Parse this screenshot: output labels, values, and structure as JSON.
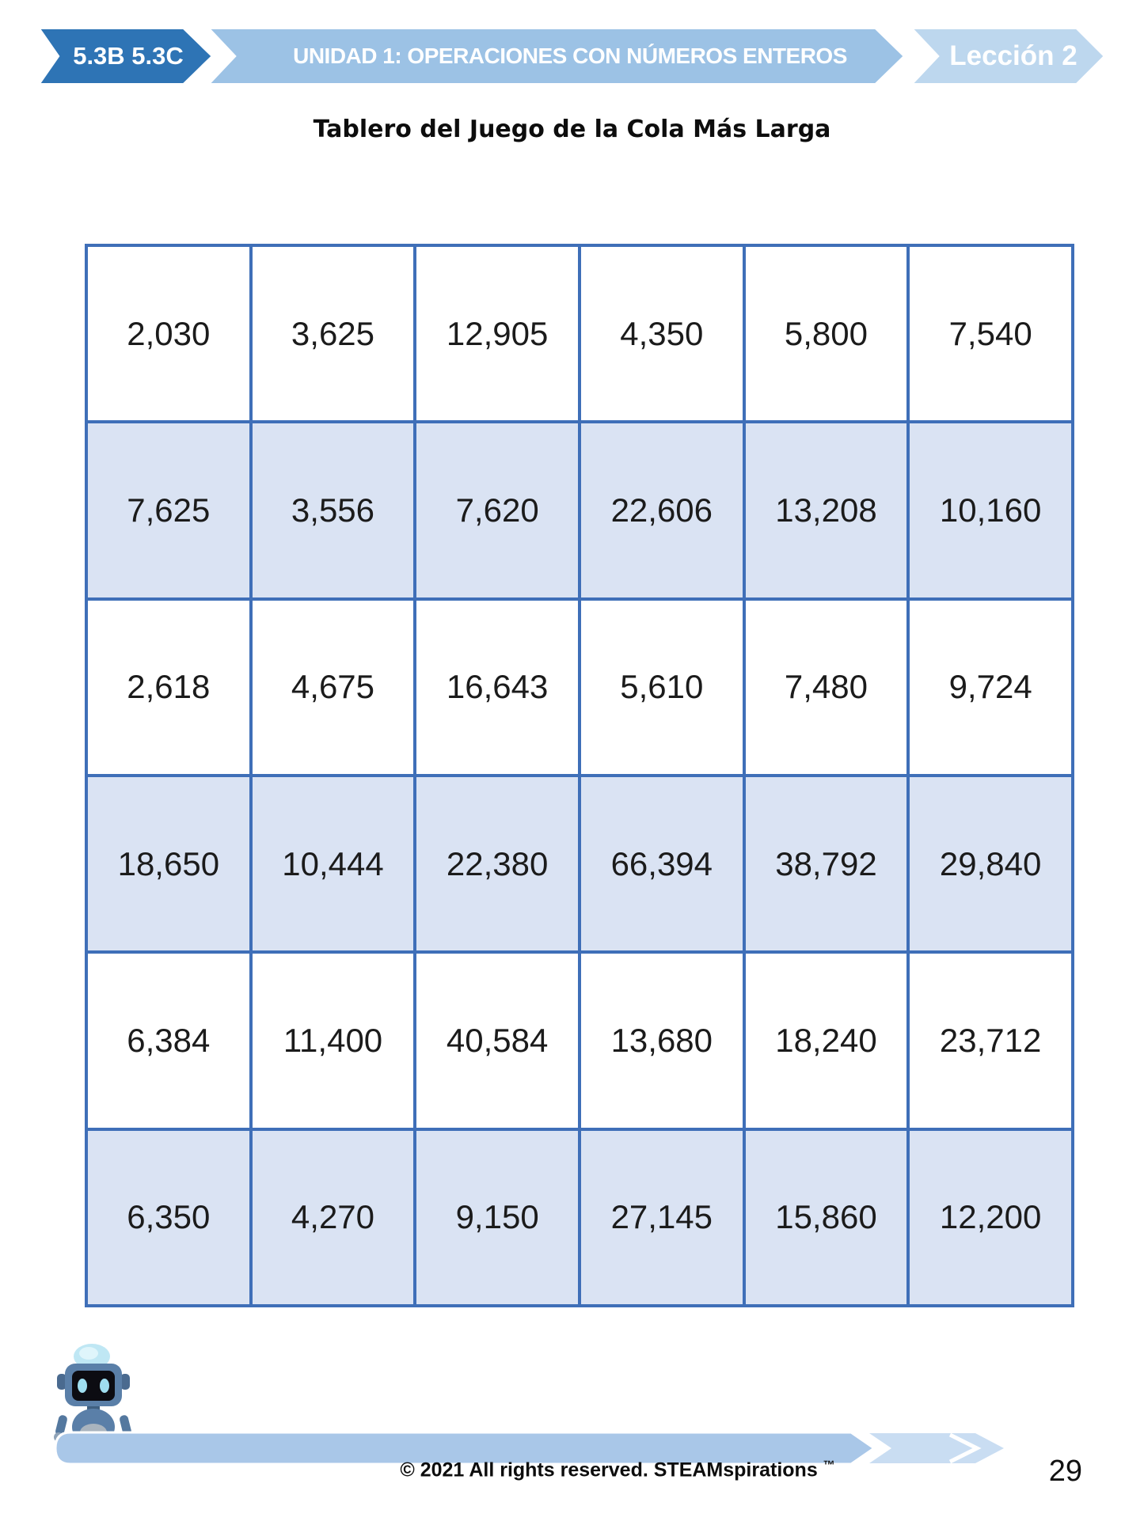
{
  "header": {
    "standards": "5.3B 5.3C",
    "unit": "UNIDAD 1: OPERACIONES CON NÚMEROS ENTEROS",
    "lesson": "Lección 2"
  },
  "title": "Tablero del Juego de la Cola Más Larga",
  "board": {
    "rows": [
      [
        "2,030",
        "3,625",
        "12,905",
        "4,350",
        "5,800",
        "7,540"
      ],
      [
        "7,625",
        "3,556",
        "7,620",
        "22,606",
        "13,208",
        "10,160"
      ],
      [
        "2,618",
        "4,675",
        "16,643",
        "5,610",
        "7,480",
        "9,724"
      ],
      [
        "18,650",
        "10,444",
        "22,380",
        "66,394",
        "38,792",
        "29,840"
      ],
      [
        "6,384",
        "11,400",
        "40,584",
        "13,680",
        "18,240",
        "23,712"
      ],
      [
        "6,350",
        "4,270",
        "9,150",
        "27,145",
        "15,860",
        "12,200"
      ]
    ]
  },
  "footer": {
    "copyright": "© 2021 All rights reserved. STEAMspirations ",
    "trademark": "™",
    "page_number": "29"
  },
  "colors": {
    "banner_dark": "#2e74b5",
    "banner_medium": "#9cc2e5",
    "banner_light": "#bdd7ee",
    "table_border": "#3f6fb8",
    "row_shaded": "#dae3f3",
    "row_plain": "#ffffff",
    "bar_main": "#a9c7e8",
    "bar_tip": "#c9ddf2"
  }
}
